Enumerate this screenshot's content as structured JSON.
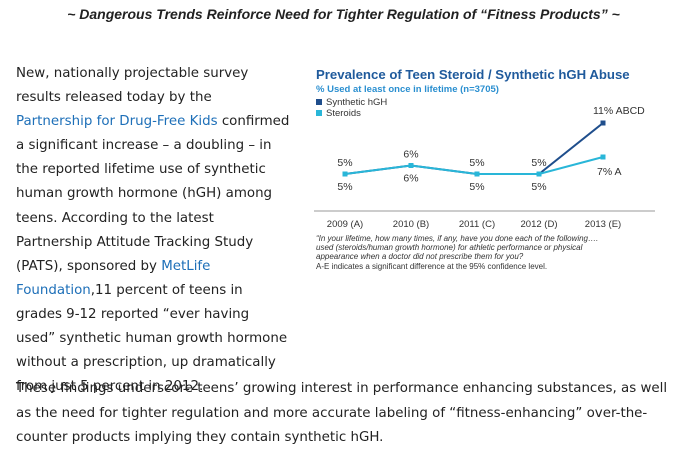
{
  "headline": "~ Dangerous Trends Reinforce Need for Tighter Regulation of “Fitness Products” ~",
  "para1": {
    "t1": "New, nationally projectable survey results released today by the ",
    "link1": "Partnership for Drug-Free Kids",
    "t2": " confirmed a significant increase – a doubling – in the reported lifetime use of synthetic human growth hormone (hGH) among teens. According to the latest Partnership Attitude Tracking Study (PATS), sponsored by ",
    "link2": "MetLife Foundation",
    "t3": ",11 percent of teens in grades 9-12 reported “ever having used” synthetic human growth hormone without a prescription, up dramatically from just 5 percent in 2012."
  },
  "para2": "These findings underscore teens’ growing interest in performance enhancing substances, as well as the need for tighter regulation and more accurate labeling of “fitness-enhancing” over-the-counter products implying they contain synthetic hGH.",
  "colors": {
    "hgh": "#1f4e8c",
    "steroids": "#29b6d8",
    "title": "#1f5a9c",
    "link": "#1d6fb8"
  },
  "chart_data": {
    "type": "line",
    "title": "Prevalence of Teen Steroid / Synthetic hGH Abuse",
    "subtitle": "% Used at least once in lifetime (n=3705)",
    "categories": [
      "2009 (A)",
      "2010 (B)",
      "2011 (C)",
      "2012 (D)",
      "2013 (E)"
    ],
    "series": [
      {
        "name": "Synthetic hGH",
        "values": [
          5,
          6,
          5,
          5,
          11
        ],
        "labels": [
          "5%",
          "6%",
          "5%",
          "5%",
          "11% ABCD"
        ]
      },
      {
        "name": "Steroids",
        "values": [
          5,
          6,
          5,
          5,
          7
        ],
        "labels": [
          "5%",
          "6%",
          "5%",
          "5%",
          "7% A"
        ]
      }
    ],
    "ylim": [
      4,
      12
    ],
    "legend": "top-left",
    "notes": [
      "“In your lifetime, how many times, if any, have you done each of the following….",
      "used (steroids/human growth hormone) for athletic performance or physical",
      "appearance when a doctor did not prescribe them for you?",
      "A-E indicates a significant difference at the 95% confidence level."
    ]
  }
}
